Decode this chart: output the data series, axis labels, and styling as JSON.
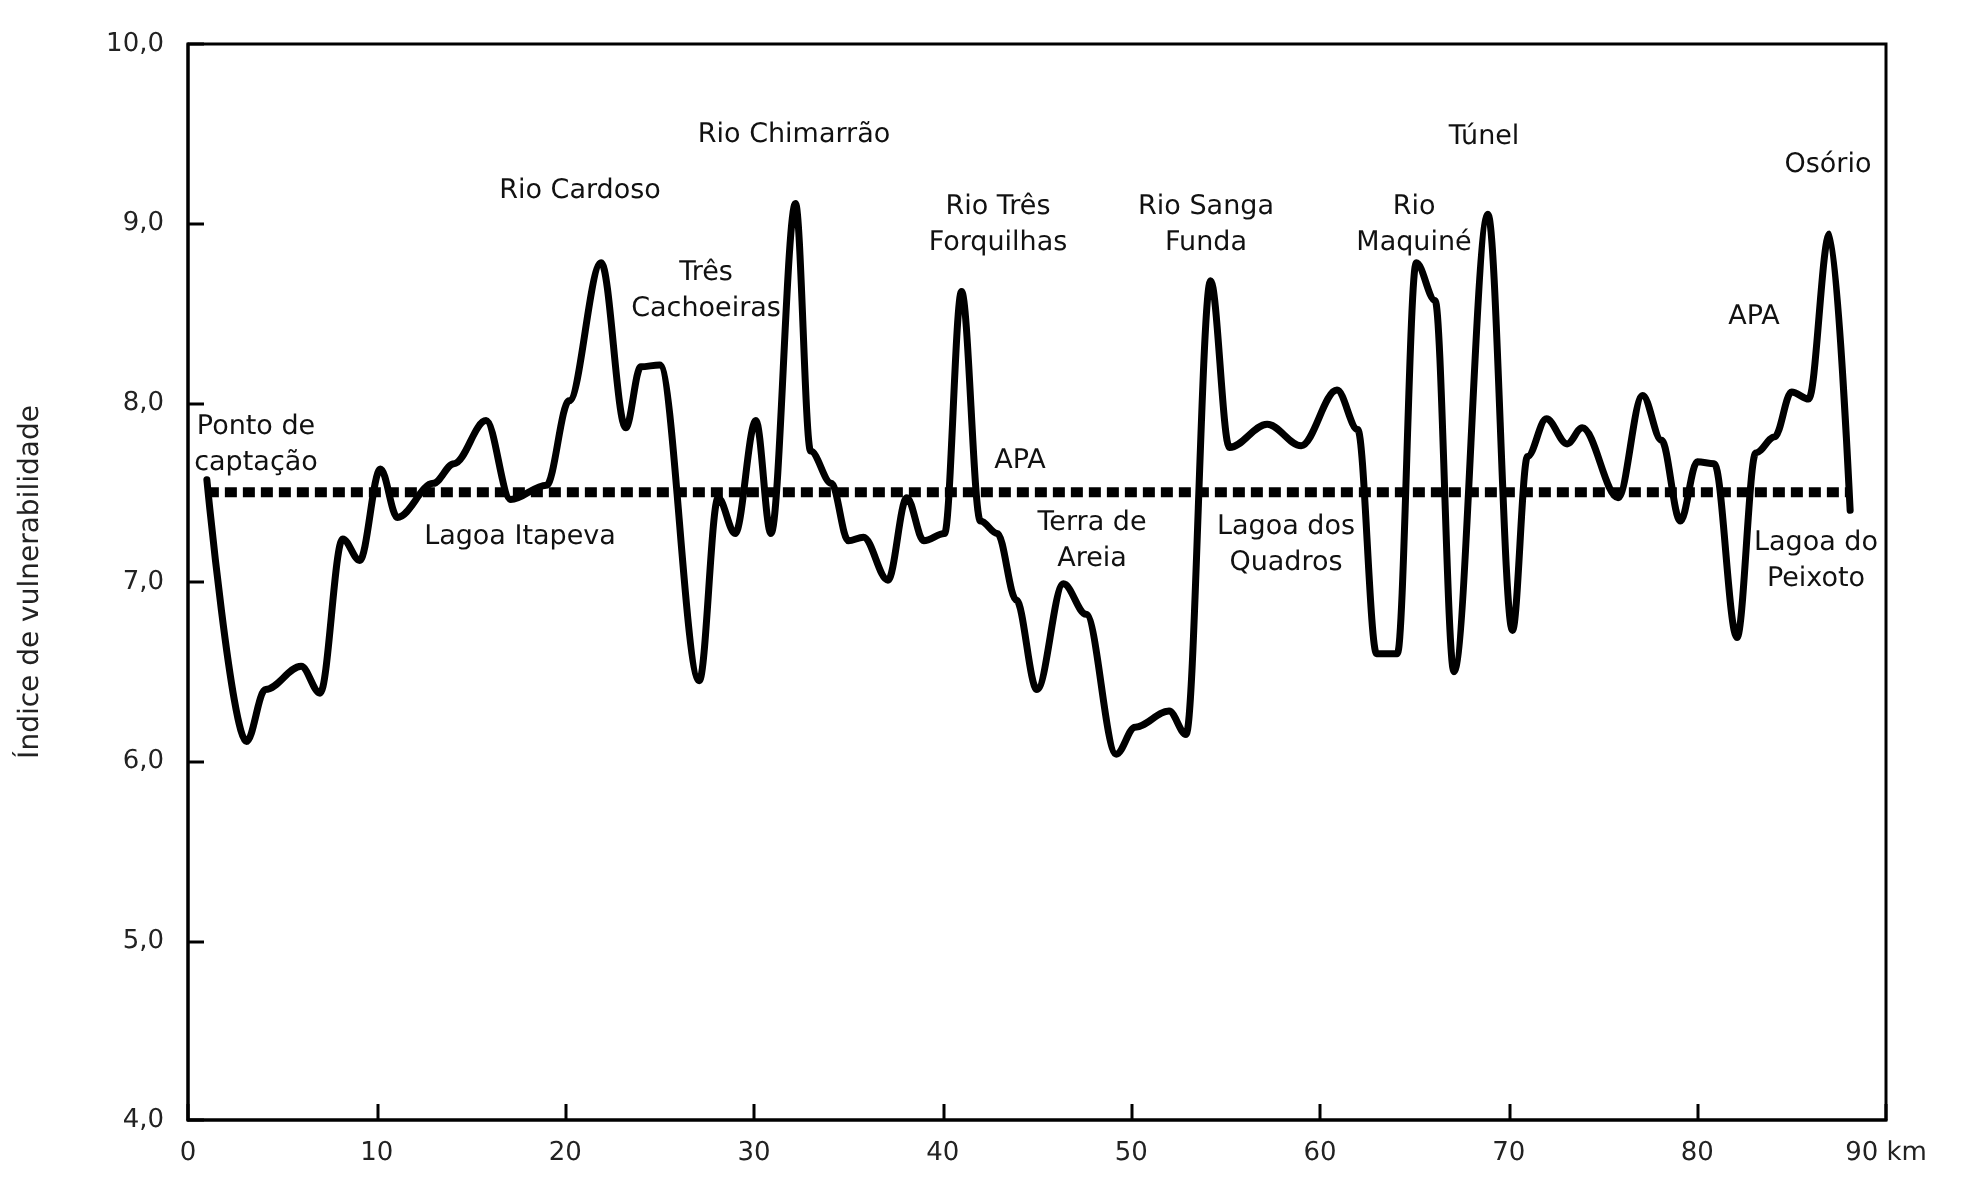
{
  "chart_data": {
    "type": "line",
    "ylabel": "Índice de vulnerabilidade",
    "x": [
      1,
      3.1,
      4.1,
      6.0,
      7.0,
      8.2,
      9.1,
      10.2,
      11.1,
      13.0,
      14.1,
      15.8,
      17.1,
      19.0,
      20.2,
      21.9,
      23.2,
      24.0,
      25.0,
      27.1,
      28.1,
      29.0,
      30.1,
      30.9,
      32.2,
      33.0,
      34.1,
      35.0,
      35.8,
      37.1,
      38.1,
      39.0,
      40.1,
      41.0,
      42.0,
      42.9,
      43.9,
      45.0,
      46.4,
      47.6,
      49.2,
      50.2,
      52.0,
      52.9,
      54.2,
      55.2,
      57.2,
      59.0,
      60.9,
      62.0,
      63.0,
      64.1,
      65.1,
      66.1,
      67.1,
      68.9,
      70.2,
      71.0,
      72.0,
      73.1,
      73.9,
      75.8,
      77.1,
      78.1,
      79.1,
      80.0,
      80.9,
      82.1,
      83.1,
      84.1,
      85.0,
      85.9,
      87.0,
      88.1
    ],
    "series": [
      {
        "color": "#000000",
        "values": [
          7.57,
          6.11,
          6.4,
          6.53,
          6.38,
          7.24,
          7.12,
          7.63,
          7.36,
          7.55,
          7.66,
          7.9,
          7.46,
          7.54,
          8.01,
          8.78,
          7.86,
          8.2,
          8.21,
          6.45,
          7.47,
          7.27,
          7.9,
          7.27,
          9.11,
          7.73,
          7.55,
          7.23,
          7.25,
          7.01,
          7.47,
          7.23,
          7.27,
          8.62,
          7.34,
          7.27,
          6.9,
          6.4,
          6.99,
          6.82,
          6.04,
          6.19,
          6.28,
          6.15,
          8.68,
          7.75,
          7.88,
          7.76,
          8.07,
          7.85,
          6.6,
          6.6,
          8.78,
          8.57,
          6.5,
          9.05,
          6.73,
          7.7,
          7.91,
          7.77,
          7.86,
          7.47,
          8.04,
          7.79,
          7.34,
          7.67,
          7.66,
          6.69,
          7.72,
          7.81,
          8.06,
          8.02,
          8.94,
          7.4
        ]
      }
    ],
    "xlim": [
      0,
      90
    ],
    "xticks": [
      0,
      10,
      20,
      30,
      40,
      50,
      60,
      70,
      80,
      {
        "value": 90,
        "label": "90 km"
      }
    ],
    "ylim": [
      4,
      10
    ],
    "yticks": [
      {
        "value": 4,
        "label": "4,0"
      },
      {
        "value": 5,
        "label": "5,0"
      },
      {
        "value": 6,
        "label": "6,0"
      },
      {
        "value": 7,
        "label": "7,0"
      },
      {
        "value": 8,
        "label": "8,0"
      },
      {
        "value": 9,
        "label": "9,0"
      },
      {
        "value": 10,
        "label": "10,0"
      }
    ],
    "ref_lines": [
      {
        "axis": "y",
        "value": 7.5,
        "color": "#000000",
        "line_style": "dashed"
      }
    ],
    "annotations": [
      "Ponto de\ncaptação",
      "Lagoa Itapeva",
      "Rio Cardoso",
      "Três\nCachoeiras",
      "Rio Chimarrão",
      "Rio Três\nForquilhas",
      "APA",
      "Terra de\nAreia",
      "Rio Sanga\nFunda",
      "Lagoa dos\nQuadros",
      "Rio\nMaquiné",
      "Túnel",
      "APA",
      "Osório",
      "Lagoa do\nPeixoto"
    ],
    "grid": false,
    "marker": "none",
    "line_style": "solid"
  }
}
